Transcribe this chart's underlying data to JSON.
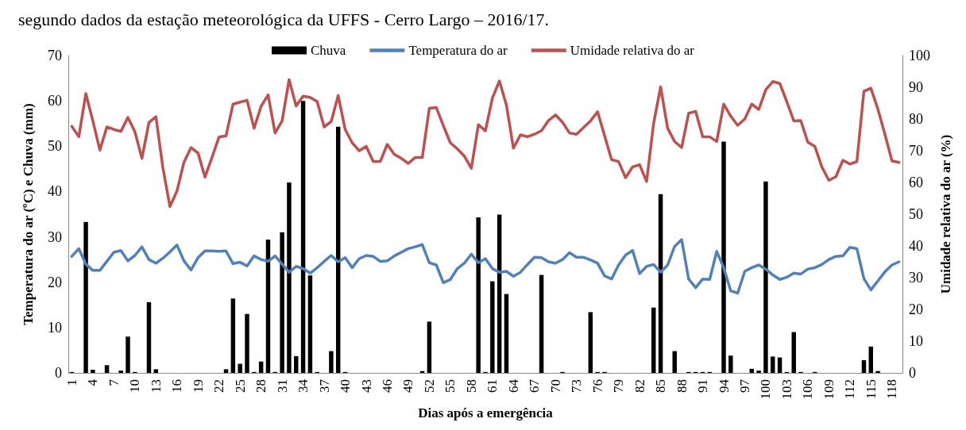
{
  "chart_data": {
    "type": "bar",
    "title": "segundo dados da estação meteorológica da UFFS - Cerro Largo – 2016/17.",
    "xlabel": "Dias após a emergência",
    "ylabel": "Temperatura do ar (ºC) e Chuva (mm)",
    "y2label": "Umidade relativa do ar (%)",
    "categories": [
      "1",
      null,
      null,
      "4",
      null,
      null,
      "7",
      null,
      null,
      "10",
      null,
      null,
      "13",
      null,
      null,
      "16",
      null,
      null,
      "19",
      null,
      null,
      "22",
      null,
      null,
      "25",
      null,
      null,
      "28",
      null,
      null,
      "31",
      null,
      null,
      "34",
      null,
      null,
      "37",
      null,
      null,
      "40",
      null,
      null,
      "43",
      null,
      null,
      "46",
      null,
      null,
      "49",
      null,
      null,
      "52",
      null,
      null,
      "55",
      null,
      null,
      "58",
      null,
      null,
      "61",
      null,
      null,
      "64",
      null,
      null,
      "67",
      null,
      null,
      "70",
      null,
      null,
      "73",
      null,
      null,
      "76",
      null,
      null,
      "79",
      null,
      null,
      "82",
      null,
      null,
      "85",
      null,
      null,
      "88",
      null,
      null,
      "91",
      null,
      null,
      "94",
      null,
      null,
      "97",
      null,
      null,
      "100",
      null,
      null,
      "103",
      null,
      null,
      "106",
      null,
      null,
      "109",
      null,
      null,
      "112",
      null,
      null,
      "115",
      null,
      null,
      "118",
      null
    ],
    "series": [
      {
        "name": "Chuva",
        "color": "#000000",
        "values": [
          0.2,
          0,
          33.3,
          0.7,
          0,
          1.7,
          0,
          0.5,
          8,
          0.2,
          0,
          15.6,
          0.8,
          0,
          0,
          0,
          0,
          0,
          0,
          0,
          0,
          0,
          0.8,
          16.4,
          2,
          13,
          0.2,
          2.5,
          29.4,
          0.2,
          31,
          42,
          3.7,
          60,
          21.5,
          0.2,
          0,
          4.8,
          54.3,
          0.2,
          0,
          0,
          0,
          0,
          0,
          0,
          0,
          0,
          0,
          0,
          0.4,
          11.3,
          0,
          0,
          0,
          0,
          0,
          0,
          34.3,
          0.2,
          20.2,
          34.9,
          17.4,
          0,
          0,
          0,
          0,
          21.6,
          0,
          0,
          0.2,
          0,
          0,
          0,
          13.4,
          0.2,
          0.2,
          0,
          0,
          0,
          0,
          0,
          0,
          14.4,
          39.4,
          0,
          4.8,
          0,
          0.2,
          0.2,
          0.2,
          0.2,
          0,
          51,
          3.8,
          0,
          0,
          0.9,
          0.5,
          42.2,
          3.6,
          3.4,
          0.2,
          9,
          0.2,
          0,
          0.2,
          0,
          0,
          0,
          0,
          0,
          0,
          2.8,
          5.8,
          0.4,
          0,
          0,
          0
        ]
      },
      {
        "name": "Temperatura do ar",
        "type": "line",
        "color": "#4f81bd",
        "values": [
          25.7,
          27.4,
          24.0,
          22.6,
          22.6,
          24.6,
          26.6,
          27.0,
          24.7,
          25.9,
          27.8,
          25.0,
          24.2,
          25.3,
          26.7,
          28.2,
          24.7,
          22.7,
          25.4,
          26.9,
          26.9,
          26.8,
          26.9,
          24.1,
          24.4,
          23.6,
          25.8,
          25.0,
          24.6,
          25.8,
          24.0,
          22.2,
          23.5,
          23.0,
          22.0,
          23.2,
          24.6,
          25.9,
          24.5,
          25.4,
          23.2,
          25.2,
          25.9,
          25.7,
          24.6,
          24.7,
          25.8,
          26.6,
          27.4,
          27.8,
          28.3,
          24.3,
          23.8,
          19.9,
          20.6,
          23.0,
          24.2,
          26.2,
          24.3,
          25.2,
          23.0,
          22.2,
          22.4,
          21.3,
          22.2,
          23.9,
          25.5,
          25.4,
          24.5,
          24.2,
          25.0,
          26.5,
          25.5,
          25.5,
          24.9,
          24.2,
          21.4,
          20.7,
          23.8,
          26.0,
          27.0,
          21.9,
          23.5,
          23.9,
          22.2,
          23.8,
          27.9,
          29.4,
          20.7,
          18.8,
          20.7,
          20.6,
          26.8,
          23.2,
          18.1,
          17.6,
          22.4,
          23.2,
          23.8,
          22.9,
          21.6,
          20.6,
          21.1,
          22.0,
          21.8,
          22.9,
          23.2,
          23.9,
          25.0,
          25.7,
          25.8,
          27.7,
          27.4,
          20.8,
          18.3,
          20.3,
          22.3,
          23.8,
          24.5
        ]
      },
      {
        "name": "Umidade relativa do ar",
        "type": "line",
        "axis": "y2",
        "color": "#c0504d",
        "values": [
          77.7,
          74.4,
          88.0,
          79.4,
          70.2,
          77.5,
          76.7,
          76.1,
          80.5,
          76.0,
          67.6,
          78.9,
          80.7,
          64.5,
          52.4,
          57.3,
          66.4,
          71.0,
          69.3,
          61.7,
          67.9,
          74.3,
          74.7,
          84.7,
          85.3,
          85.9,
          77.1,
          84.0,
          87.6,
          75.6,
          79.4,
          92.4,
          84.1,
          87.2,
          86.8,
          85.5,
          77.5,
          79.2,
          87.4,
          76.7,
          72.5,
          70.0,
          71.4,
          66.6,
          66.6,
          72.0,
          68.9,
          67.6,
          66.0,
          67.9,
          67.9,
          83.4,
          83.6,
          77.9,
          72.5,
          70.6,
          68.3,
          64.5,
          78.2,
          76.3,
          86.6,
          92.0,
          84.4,
          70.8,
          75.0,
          74.4,
          75.2,
          76.3,
          79.5,
          81.3,
          79.0,
          75.6,
          75.2,
          77.3,
          79.4,
          82.3,
          74.8,
          67.2,
          66.6,
          61.5,
          64.9,
          65.6,
          60.3,
          78.6,
          90.1,
          77.1,
          72.9,
          71.0,
          81.8,
          82.4,
          74.4,
          74.4,
          72.9,
          84.7,
          80.9,
          78.0,
          80.0,
          84.7,
          83.0,
          89.2,
          91.8,
          91.2,
          85.5,
          79.4,
          79.5,
          72.7,
          71.4,
          64.9,
          60.7,
          61.8,
          67.0,
          65.8,
          66.6,
          88.7,
          89.7,
          83.1,
          75.2,
          66.8,
          66.3
        ]
      }
    ],
    "ylim": [
      0,
      70
    ],
    "yticks": [
      0,
      10,
      20,
      30,
      40,
      50,
      60,
      70
    ],
    "y2lim": [
      0,
      100
    ],
    "y2ticks": [
      0,
      10,
      20,
      30,
      40,
      50,
      60,
      70,
      80,
      90,
      100
    ],
    "legend": "top",
    "grid": false,
    "marker": "none",
    "line_style": "solid"
  }
}
